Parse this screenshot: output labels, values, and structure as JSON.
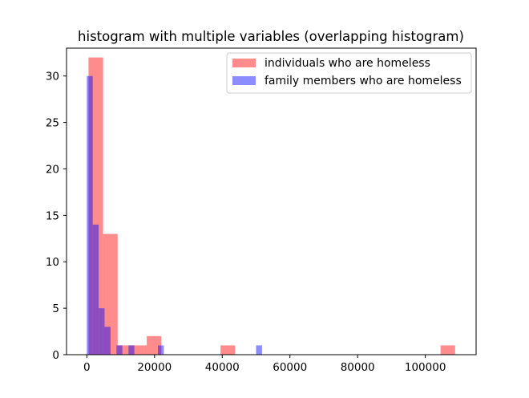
{
  "chart_data": {
    "type": "histogram",
    "title": "histogram with multiple variables (overlapping histogram)",
    "xlabel": "",
    "ylabel": "",
    "xlim": [
      -6000,
      115000
    ],
    "ylim": [
      0,
      33
    ],
    "xticks": [
      0,
      20000,
      40000,
      60000,
      80000,
      100000
    ],
    "xtick_labels": [
      "0",
      "20000",
      "40000",
      "60000",
      "80000",
      "100000"
    ],
    "yticks": [
      0,
      5,
      10,
      15,
      20,
      25,
      30
    ],
    "ytick_labels": [
      "0",
      "5",
      "10",
      "15",
      "20",
      "25",
      "30"
    ],
    "grid": false,
    "legend_position": "upper right",
    "series": [
      {
        "name": "individuals who are homeless",
        "color": "#ff0000",
        "alpha": 0.45,
        "bins": [
          {
            "x0": 500,
            "x1": 4800,
            "count": 32
          },
          {
            "x0": 4800,
            "x1": 9100,
            "count": 13
          },
          {
            "x0": 9100,
            "x1": 13400,
            "count": 1
          },
          {
            "x0": 13400,
            "x1": 17700,
            "count": 1
          },
          {
            "x0": 17700,
            "x1": 22000,
            "count": 2
          },
          {
            "x0": 39500,
            "x1": 43800,
            "count": 1
          },
          {
            "x0": 104500,
            "x1": 108800,
            "count": 1
          }
        ]
      },
      {
        "name": "family members who are homeless",
        "color": "#0000ff",
        "alpha": 0.45,
        "bins": [
          {
            "x0": 0,
            "x1": 1750,
            "count": 30
          },
          {
            "x0": 1750,
            "x1": 3500,
            "count": 14
          },
          {
            "x0": 3500,
            "x1": 5250,
            "count": 5
          },
          {
            "x0": 5250,
            "x1": 7000,
            "count": 3
          },
          {
            "x0": 8750,
            "x1": 10500,
            "count": 1
          },
          {
            "x0": 12300,
            "x1": 14050,
            "count": 1
          },
          {
            "x0": 21000,
            "x1": 22750,
            "count": 1
          },
          {
            "x0": 50000,
            "x1": 51750,
            "count": 1
          }
        ]
      }
    ]
  }
}
